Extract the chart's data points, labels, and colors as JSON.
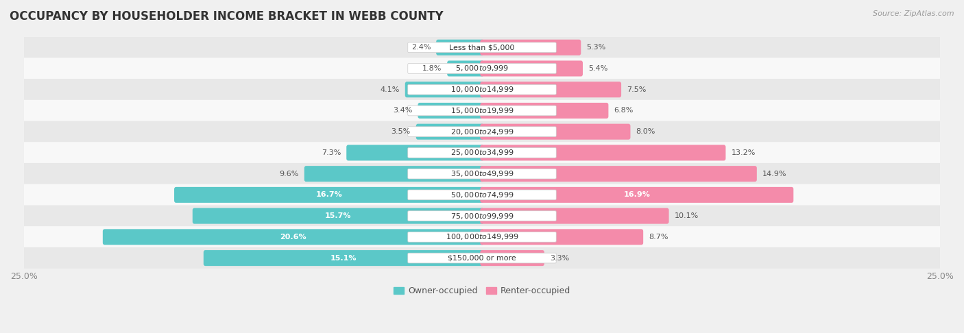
{
  "title": "OCCUPANCY BY HOUSEHOLDER INCOME BRACKET IN WEBB COUNTY",
  "source": "Source: ZipAtlas.com",
  "categories": [
    "Less than $5,000",
    "$5,000 to $9,999",
    "$10,000 to $14,999",
    "$15,000 to $19,999",
    "$20,000 to $24,999",
    "$25,000 to $34,999",
    "$35,000 to $49,999",
    "$50,000 to $74,999",
    "$75,000 to $99,999",
    "$100,000 to $149,999",
    "$150,000 or more"
  ],
  "owner_values": [
    2.4,
    1.8,
    4.1,
    3.4,
    3.5,
    7.3,
    9.6,
    16.7,
    15.7,
    20.6,
    15.1
  ],
  "renter_values": [
    5.3,
    5.4,
    7.5,
    6.8,
    8.0,
    13.2,
    14.9,
    16.9,
    10.1,
    8.7,
    3.3
  ],
  "owner_color": "#5bc8c8",
  "renter_color": "#f48baa",
  "bg_color": "#f0f0f0",
  "row_colors": [
    "#e8e8e8",
    "#f8f8f8"
  ],
  "bar_height": 0.55,
  "xlim": 25.0,
  "title_fontsize": 12,
  "label_fontsize": 8,
  "cat_fontsize": 8,
  "tick_fontsize": 9,
  "legend_fontsize": 9,
  "source_fontsize": 8,
  "owner_threshold": 10.0,
  "renter_threshold": 15.0
}
